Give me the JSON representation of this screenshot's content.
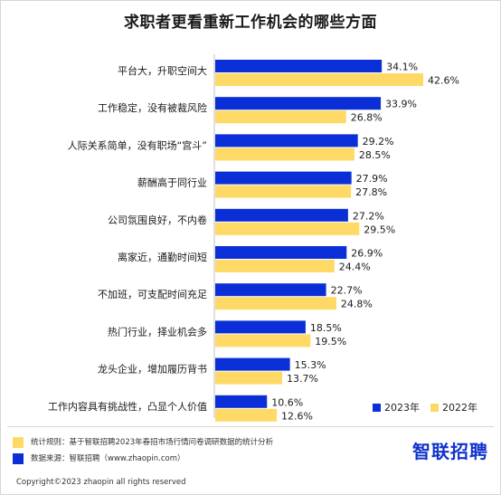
{
  "chart_data": {
    "type": "bar",
    "orientation": "horizontal",
    "title": "求职者更看重新工作机会的哪些方面",
    "categories": [
      "平台大，升职空间大",
      "工作稳定，没有被裁风险",
      "人际关系简单，没有职场“宫斗”",
      "薪酬高于同行业",
      "公司氛围良好，不内卷",
      "离家近，通勤时间短",
      "不加班，可支配时间充足",
      "热门行业，择业机会多",
      "龙头企业，增加履历背书",
      "工作内容具有挑战性，凸显个人价值"
    ],
    "series": [
      {
        "name": "2023年",
        "color": "#0b2fd6",
        "values": [
          34.1,
          33.9,
          29.2,
          27.9,
          27.2,
          26.9,
          22.7,
          18.5,
          15.3,
          10.6
        ],
        "labels": [
          "34.1%",
          "33.9%",
          "29.2%",
          "27.9%",
          "27.2%",
          "26.9%",
          "22.7%",
          "18.5%",
          "15.3%",
          "10.6%"
        ]
      },
      {
        "name": "2022年",
        "color": "#ffd966",
        "values": [
          42.6,
          26.8,
          28.5,
          27.8,
          29.5,
          24.4,
          24.8,
          19.5,
          13.7,
          12.6
        ],
        "labels": [
          "42.6%",
          "26.8%",
          "28.5%",
          "27.8%",
          "29.5%",
          "24.4%",
          "24.8%",
          "19.5%",
          "13.7%",
          "12.6%"
        ]
      }
    ],
    "grid": false,
    "legend_position": "bottom-right"
  },
  "footer": {
    "note_stats": "统计规则：基于智联招聘2023年春招市场行情问卷调研数据的统计分析",
    "note_source": "数据来源：智联招聘（www.zhaopin.com）",
    "logo_text": "智联招聘",
    "copyright": "Copyright©2023 zhaopin all rights reserved",
    "colors": {
      "stats_swatch": "#ffd966",
      "source_swatch": "#0b2fd6"
    }
  }
}
